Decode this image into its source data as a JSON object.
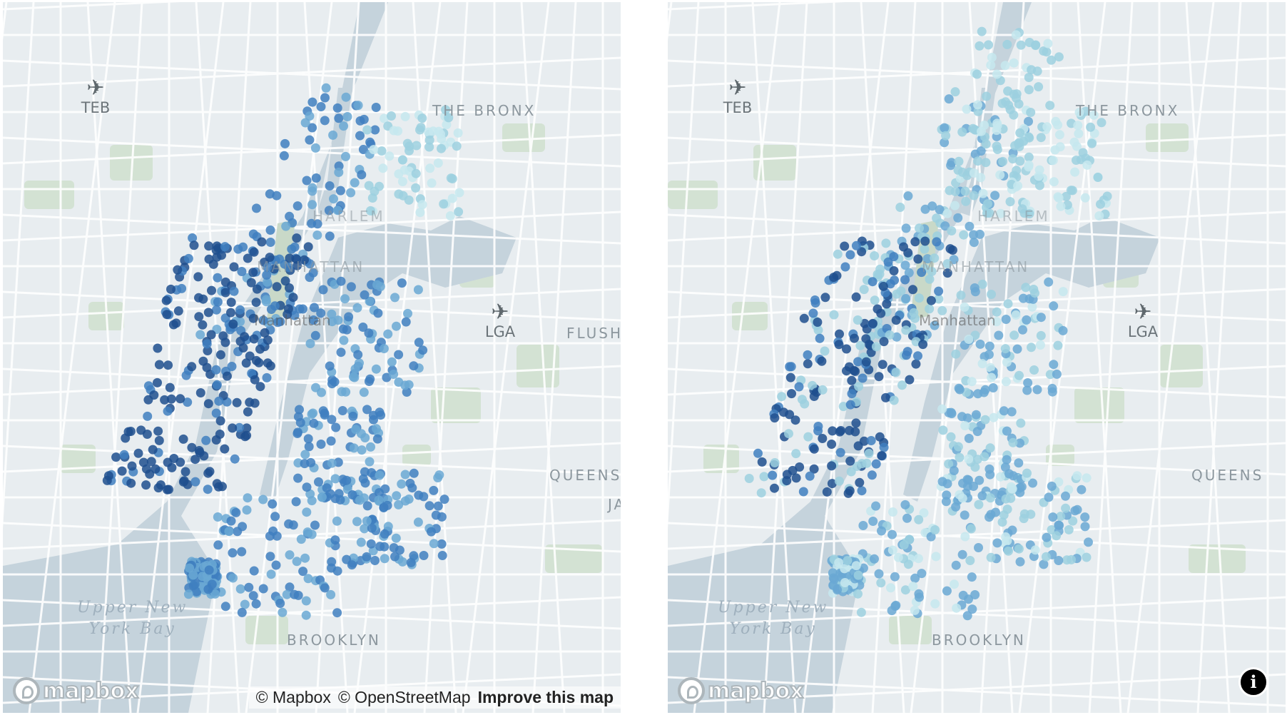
{
  "maps": [
    {
      "id": "left",
      "place_labels": {
        "bronx": "THE BRONX",
        "harlem": "HARLEM",
        "manhattan": "MANHATTAN",
        "manhattan_city": "Manhattan",
        "queens": "QUEENS",
        "flushing": "FLUSH",
        "brooklyn": "BROOKLYN",
        "jackson": "JA"
      },
      "water_label": [
        "Upper New",
        "York Bay"
      ],
      "airports": [
        {
          "code": "TEB",
          "icon": "airplane-icon"
        },
        {
          "code": "LGA",
          "icon": "airplane-icon"
        }
      ],
      "logo": "mapbox",
      "attribution": {
        "mapbox": "© Mapbox",
        "osm": "© OpenStreetMap",
        "improve": "Improve this map"
      },
      "color_ramp": [
        "#c6e8ee",
        "#9cd0df",
        "#6aa8d4",
        "#3f7fbf",
        "#1f4f8e"
      ]
    },
    {
      "id": "right",
      "place_labels": {
        "bronx": "THE BRONX",
        "harlem": "HARLEM",
        "manhattan": "MANHATTAN",
        "manhattan_city": "Manhattan",
        "queens": "QUEENS",
        "brooklyn": "BROOKLYN"
      },
      "water_label": [
        "Upper New",
        "York Bay"
      ],
      "airports": [
        {
          "code": "TEB",
          "icon": "airplane-icon"
        },
        {
          "code": "LGA",
          "icon": "airplane-icon"
        }
      ],
      "logo": "mapbox",
      "info_button": "i",
      "color_ramp": [
        "#c6e8ee",
        "#9cd0df",
        "#6aa8d4",
        "#3f7fbf",
        "#1f4f8e"
      ]
    }
  ]
}
